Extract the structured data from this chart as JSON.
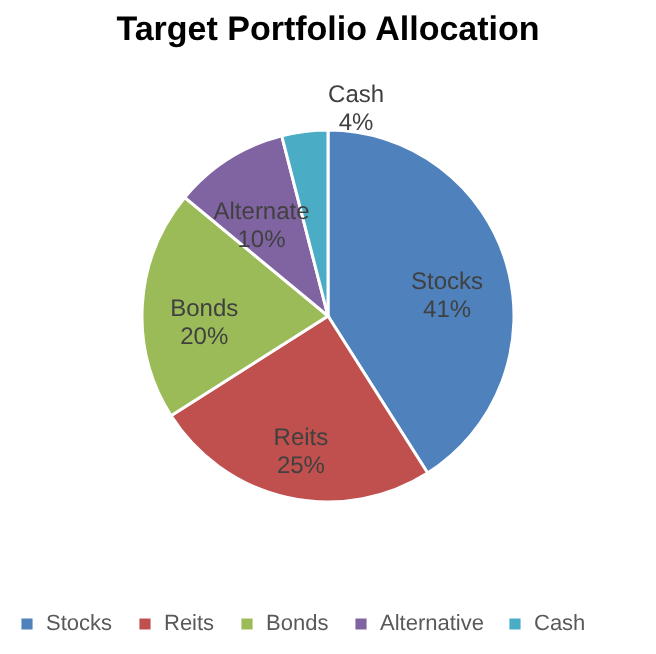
{
  "chart_data": {
    "type": "pie",
    "title": "Target Portfolio Allocation",
    "categories": [
      "Stocks",
      "Reits",
      "Bonds",
      "Alternative",
      "Cash"
    ],
    "values": [
      41,
      25,
      20,
      10,
      4
    ],
    "colors": [
      "#4f81bd",
      "#c0504d",
      "#9bbb59",
      "#8064a2",
      "#4bacc6"
    ],
    "value_labels": [
      "Stocks\n41%",
      "Reits\n25%",
      "Bonds\n20%",
      "Alternate\n10%",
      "Cash\n4%"
    ],
    "legend": "bottom"
  }
}
